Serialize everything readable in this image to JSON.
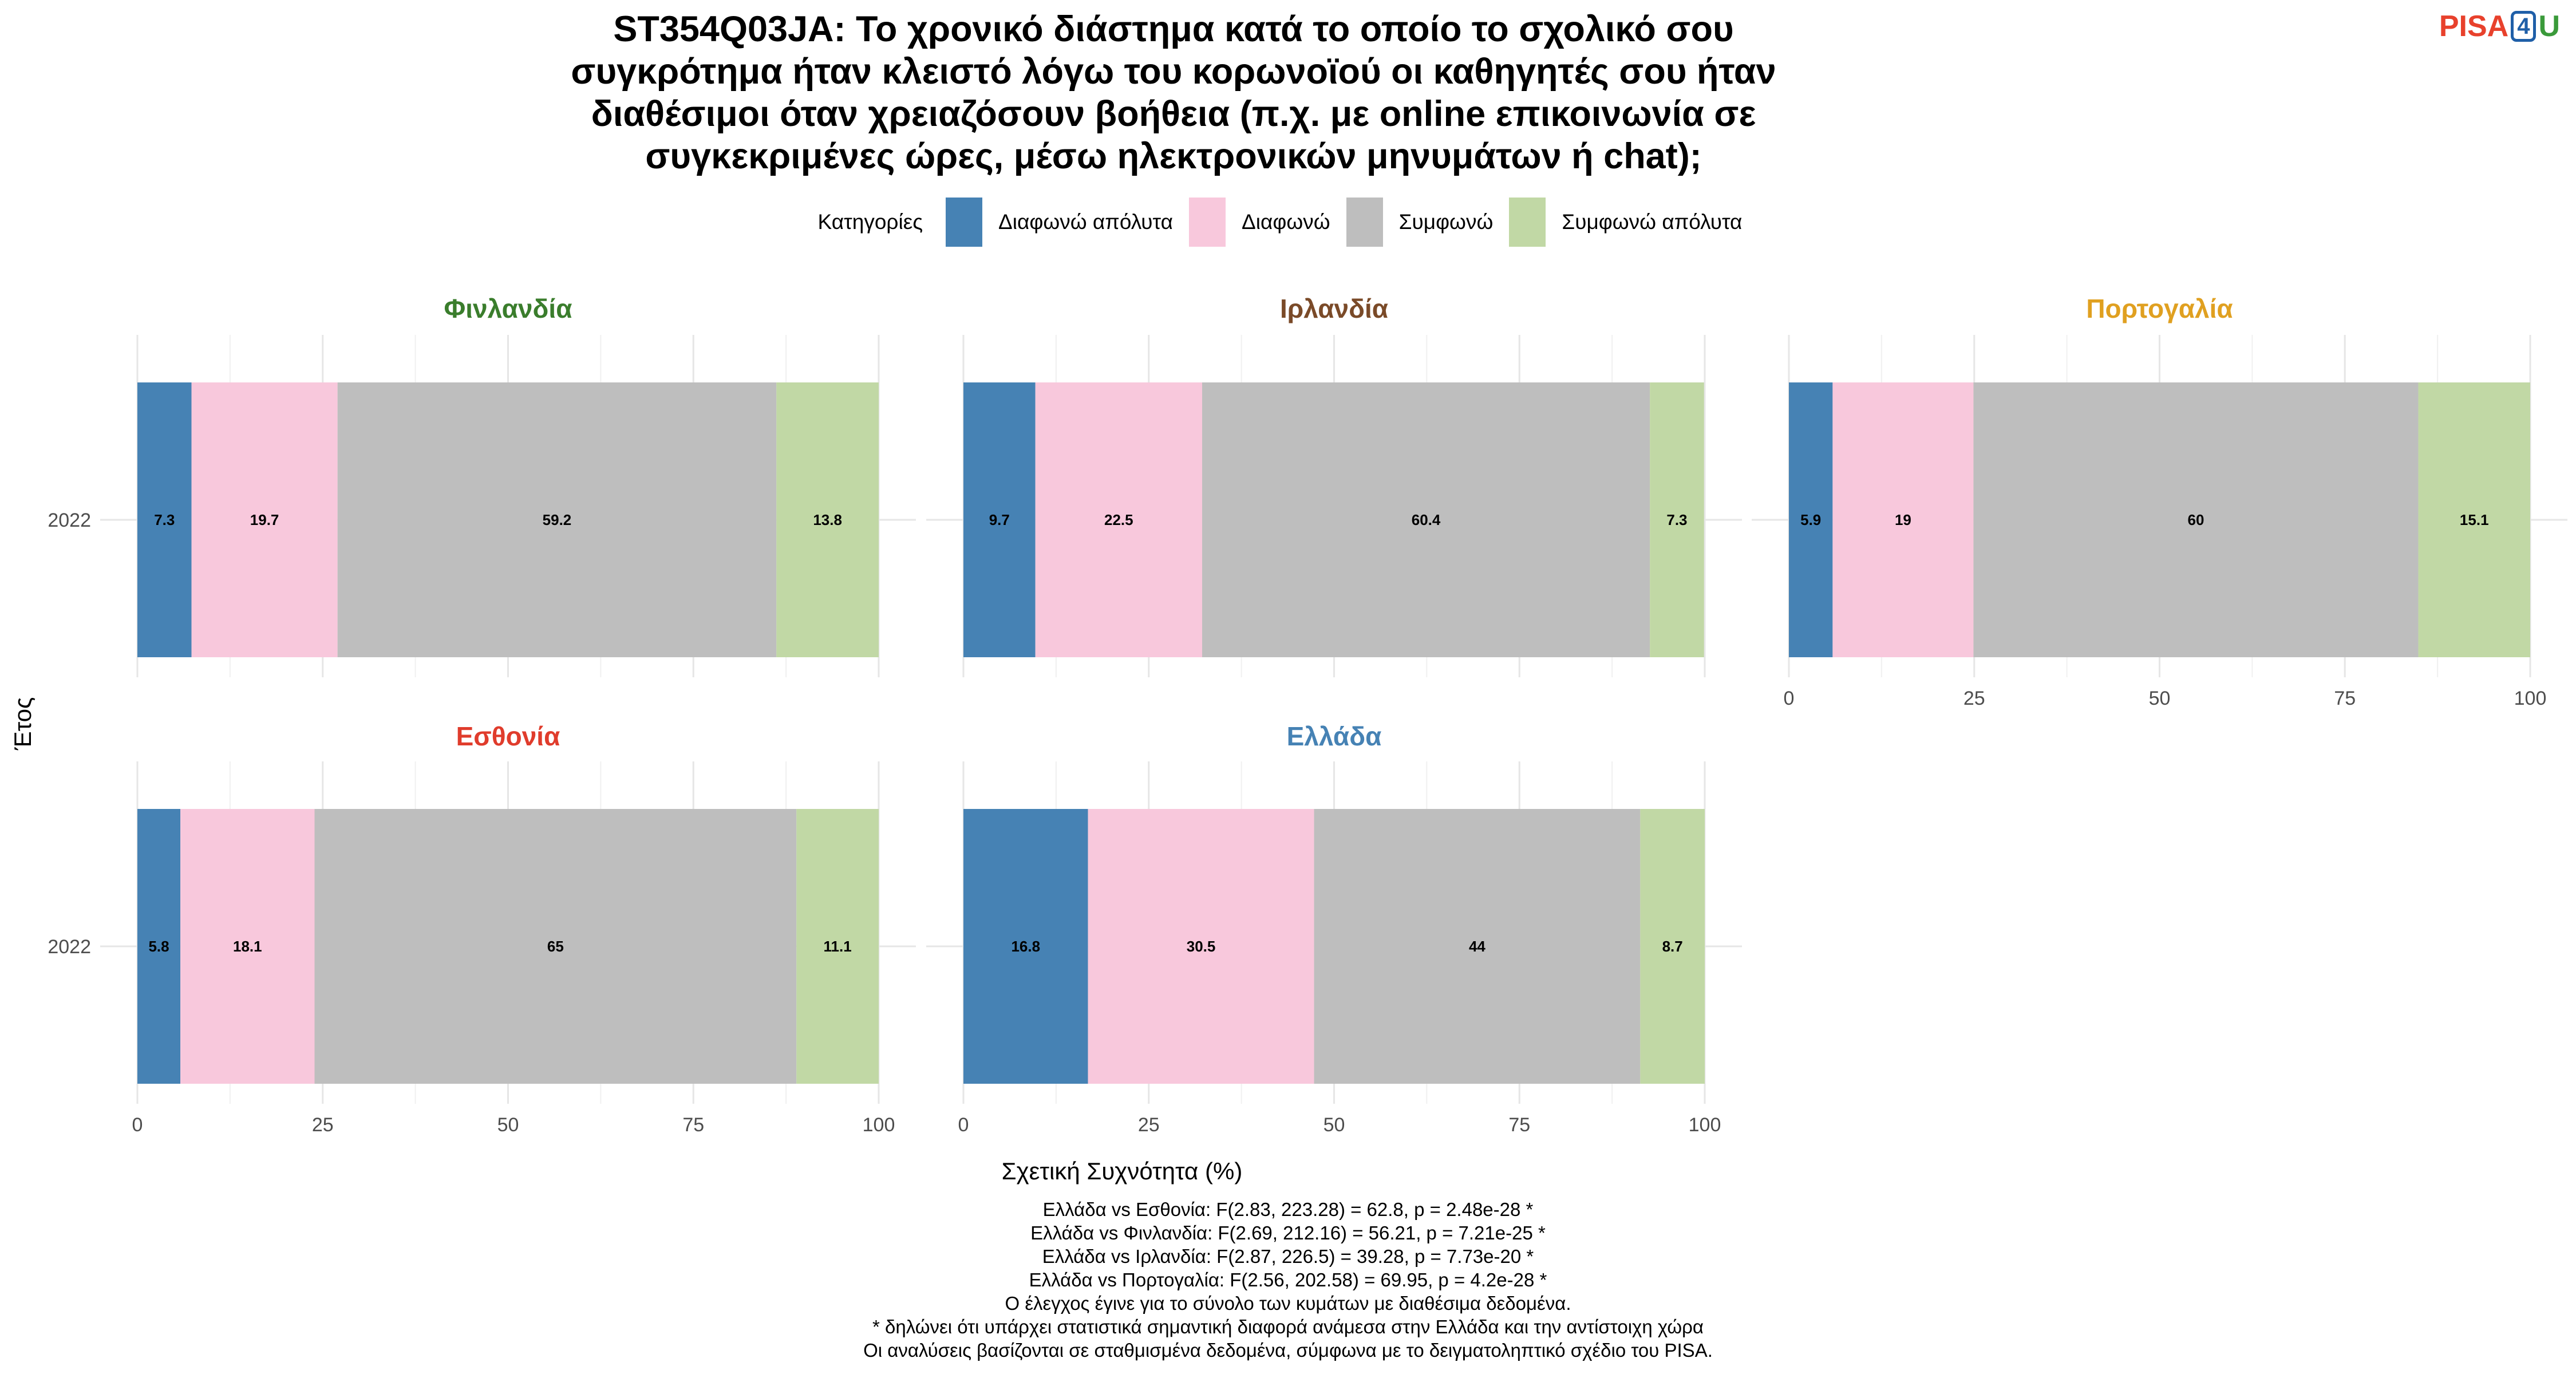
{
  "title_lines": [
    "ST354Q03JA: Το χρονικό διάστημα κατά το οποίο το σχολικό σου",
    "συγκρότημα ήταν κλειστό λόγω του κορωνοϊού οι καθηγητές σου ήταν",
    "διαθέσιμοι όταν χρειαζόσουν βοήθεια (π.χ. με online επικοινωνία σε",
    "συγκεκριμένες ώρες, μέσω ηλεκτρονικών μηνυμάτων ή chat);"
  ],
  "logo": {
    "part1": "PISA",
    "part2": "4",
    "part3": "U"
  },
  "legend": {
    "title": "Κατηγορίες",
    "items": [
      {
        "label": "Διαφωνώ απόλυτα",
        "color": "#4682b4"
      },
      {
        "label": "Διαφωνώ",
        "color": "#f8c8dc"
      },
      {
        "label": "Συμφωνώ",
        "color": "#bebebe"
      },
      {
        "label": "Συμφωνώ απόλυτα",
        "color": "#c1d8a5"
      }
    ]
  },
  "y_axis_label": "Έτος",
  "x_axis_label": "Σχετική Συχνότητα (%)",
  "notes": [
    "Ελλάδα vs Εσθονία: F(2.83, 223.28) = 62.8, p = 2.48e-28 *",
    "Ελλάδα vs Φινλανδία: F(2.69, 212.16) = 56.21, p = 7.21e-25 *",
    "Ελλάδα vs Ιρλανδία: F(2.87, 226.5) = 39.28, p = 7.73e-20 *",
    "Ελλάδα vs Πορτογαλία: F(2.56, 202.58) = 69.95, p = 4.2e-28 *",
    "Ο έλεγχος έγινε για το σύνολο των κυμάτων με διαθέσιμα δεδομένα.",
    "* δηλώνει ότι υπάρχει στατιστικά σημαντική διαφορά ανάμεσα στην Ελλάδα και την αντίστοιχη χώρα",
    "Οι αναλύσεις βασίζονται σε σταθμισμένα δεδομένα, σύμφωνα με το δειγματοληπτικό σχέδιο του PISA."
  ],
  "chart_data": {
    "type": "bar",
    "orientation": "horizontal",
    "stacked": true,
    "xlim": [
      0,
      100
    ],
    "x_ticks": [
      0,
      25,
      50,
      75,
      100
    ],
    "categories": [
      "2022"
    ],
    "series_names": [
      "Διαφωνώ απόλυτα",
      "Διαφωνώ",
      "Συμφωνώ",
      "Συμφωνώ απόλυτα"
    ],
    "facets": [
      {
        "name": "Φινλανδία",
        "color": "#3a7d2c",
        "year": "2022",
        "values": [
          7.3,
          19.7,
          59.2,
          13.8
        ],
        "labels": [
          "7.3",
          "19.7",
          "59.2",
          "13.8"
        ]
      },
      {
        "name": "Ιρλανδία",
        "color": "#7a4a28",
        "year": "2022",
        "values": [
          9.7,
          22.5,
          60.4,
          7.3
        ],
        "labels": [
          "9.7",
          "22.5",
          "60.4",
          "7.3"
        ]
      },
      {
        "name": "Πορτογαλία",
        "color": "#e0a020",
        "year": "2022",
        "values": [
          5.9,
          19,
          60,
          15.1
        ],
        "labels": [
          "5.9",
          "19",
          "60",
          "15.1"
        ]
      },
      {
        "name": "Εσθονία",
        "color": "#e03c2c",
        "year": "2022",
        "values": [
          5.8,
          18.1,
          65,
          11.1
        ],
        "labels": [
          "5.8",
          "18.1",
          "65",
          "11.1"
        ]
      },
      {
        "name": "Ελλάδα",
        "color": "#4682b4",
        "year": "2022",
        "values": [
          16.8,
          30.5,
          44,
          8.7
        ],
        "labels": [
          "16.8",
          "30.5",
          "44",
          "8.7"
        ]
      }
    ]
  }
}
